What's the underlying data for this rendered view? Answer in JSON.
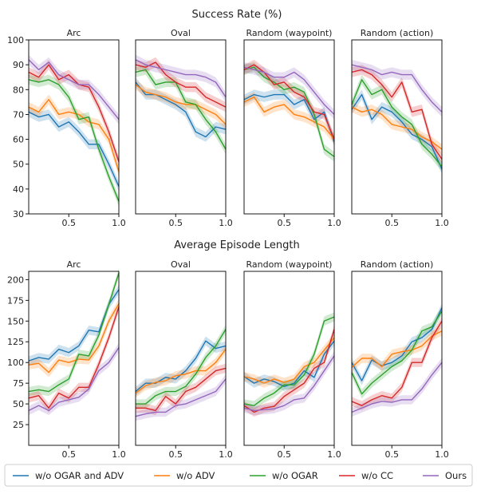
{
  "chart_data": {
    "type": "line",
    "x": [
      0.1,
      0.2,
      0.3,
      0.4,
      0.5,
      0.6,
      0.7,
      0.8,
      0.9,
      1.0
    ],
    "xticks": [
      "0.5",
      "1.0"
    ],
    "xtick_values": [
      0.5,
      1.0
    ],
    "xlim": [
      0.1,
      1.0
    ],
    "series_meta": [
      {
        "name": "w/o OGAR and ADV",
        "color": "#1f77b4"
      },
      {
        "name": "w/o ADV",
        "color": "#ff7f0e"
      },
      {
        "name": "w/o OGAR",
        "color": "#2ca02c"
      },
      {
        "name": "w/o CC",
        "color": "#d62728"
      },
      {
        "name": "Ours",
        "color": "#9467bd"
      }
    ],
    "rows": [
      {
        "title": "Success Rate (%)",
        "ylim": [
          30,
          100
        ],
        "yticks": [
          30,
          40,
          50,
          60,
          70,
          80,
          90,
          100
        ],
        "panels": [
          {
            "title": "Arc",
            "series": [
              {
                "name": "w/o OGAR and ADV",
                "values": [
                  71,
                  69,
                  70,
                  65,
                  67,
                  63,
                  58,
                  58,
                  50,
                  41
                ]
              },
              {
                "name": "w/o ADV",
                "values": [
                  73,
                  71,
                  76,
                  70,
                  71,
                  70,
                  67,
                  66,
                  60,
                  47
                ]
              },
              {
                "name": "w/o OGAR",
                "values": [
                  84,
                  83,
                  84,
                  82,
                  77,
                  68,
                  69,
                  56,
                  45,
                  35
                ]
              },
              {
                "name": "w/o CC",
                "values": [
                  87,
                  85,
                  90,
                  84,
                  86,
                  82,
                  81,
                  73,
                  63,
                  51
                ]
              },
              {
                "name": "Ours",
                "values": [
                  92,
                  88,
                  91,
                  86,
                  84,
                  82,
                  82,
                  78,
                  73,
                  68
                ]
              }
            ]
          },
          {
            "title": "Oval",
            "series": [
              {
                "name": "w/o OGAR and ADV",
                "values": [
                  83,
                  78,
                  78,
                  76,
                  74,
                  71,
                  63,
                  61,
                  65,
                  64
                ]
              },
              {
                "name": "w/o ADV",
                "values": [
                  82,
                  79,
                  78,
                  77,
                  75,
                  74,
                  74,
                  72,
                  70,
                  66
                ]
              },
              {
                "name": "w/o OGAR",
                "values": [
                  87,
                  88,
                  82,
                  83,
                  83,
                  75,
                  74,
                  68,
                  63,
                  56
                ]
              },
              {
                "name": "w/o CC",
                "values": [
                  90,
                  89,
                  91,
                  86,
                  83,
                  81,
                  81,
                  77,
                  75,
                  73
                ]
              },
              {
                "name": "Ours",
                "values": [
                  92,
                  90,
                  89,
                  88,
                  87,
                  86,
                  86,
                  85,
                  83,
                  77
                ]
              }
            ]
          },
          {
            "title": "Random (waypoint)",
            "series": [
              {
                "name": "w/o OGAR and ADV",
                "values": [
                  76,
                  78,
                  77,
                  78,
                  78,
                  74,
                  76,
                  68,
                  71,
                  59
                ]
              },
              {
                "name": "w/o ADV",
                "values": [
                  75,
                  77,
                  71,
                  73,
                  74,
                  70,
                  69,
                  67,
                  65,
                  60
                ]
              },
              {
                "name": "w/o OGAR",
                "values": [
                  88,
                  89,
                  85,
                  83,
                  80,
                  81,
                  79,
                  70,
                  56,
                  53
                ]
              },
              {
                "name": "w/o CC",
                "values": [
                  88,
                  90,
                  87,
                  82,
                  83,
                  79,
                  77,
                  71,
                  70,
                  60
                ]
              },
              {
                "name": "Ours",
                "values": [
                  89,
                  88,
                  87,
                  85,
                  85,
                  87,
                  84,
                  79,
                  74,
                  70
                ]
              }
            ]
          },
          {
            "title": "Random (action)",
            "series": [
              {
                "name": "w/o OGAR and ADV",
                "values": [
                  72,
                  78,
                  68,
                  73,
                  71,
                  67,
                  62,
                  60,
                  57,
                  48
                ]
              },
              {
                "name": "w/o ADV",
                "values": [
                  73,
                  71,
                  72,
                  70,
                  66,
                  65,
                  64,
                  61,
                  59,
                  56
                ]
              },
              {
                "name": "w/o OGAR",
                "values": [
                  74,
                  84,
                  78,
                  80,
                  73,
                  69,
                  66,
                  58,
                  54,
                  49
                ]
              },
              {
                "name": "w/o CC",
                "values": [
                  87,
                  88,
                  86,
                  82,
                  77,
                  83,
                  71,
                  72,
                  58,
                  52
                ]
              },
              {
                "name": "Ours",
                "values": [
                  90,
                  89,
                  88,
                  86,
                  87,
                  86,
                  86,
                  80,
                  75,
                  71
                ]
              }
            ]
          }
        ]
      },
      {
        "title": "Average Episode Length",
        "ylim": [
          0,
          210
        ],
        "yticks": [
          25,
          50,
          75,
          100,
          125,
          150,
          175,
          200
        ],
        "panels": [
          {
            "title": "Arc",
            "series": [
              {
                "name": "w/o OGAR and ADV",
                "values": [
                  102,
                  106,
                  104,
                  116,
                  112,
                  120,
                  139,
                  137,
                  170,
                  188
                ]
              },
              {
                "name": "w/o ADV",
                "values": [
                  97,
                  99,
                  88,
                  103,
                  100,
                  104,
                  103,
                  120,
                  150,
                  171
                ]
              },
              {
                "name": "w/o OGAR",
                "values": [
                  65,
                  67,
                  65,
                  73,
                  80,
                  110,
                  108,
                  133,
                  170,
                  208
                ]
              },
              {
                "name": "w/o CC",
                "values": [
                  57,
                  60,
                  45,
                  63,
                  57,
                  70,
                  70,
                  98,
                  130,
                  167
                ]
              },
              {
                "name": "Ours",
                "values": [
                  42,
                  48,
                  42,
                  52,
                  55,
                  58,
                  68,
                  90,
                  100,
                  118
                ]
              }
            ]
          },
          {
            "title": "Oval",
            "series": [
              {
                "name": "w/o OGAR and ADV",
                "values": [
                  65,
                  75,
                  75,
                  82,
                  80,
                  90,
                  105,
                  126,
                  117,
                  120
                ]
              },
              {
                "name": "w/o ADV",
                "values": [
                  63,
                  72,
                  76,
                  78,
                  84,
                  86,
                  90,
                  90,
                  100,
                  116
                ]
              },
              {
                "name": "w/o OGAR",
                "values": [
                  50,
                  50,
                  60,
                  65,
                  65,
                  71,
                  86,
                  106,
                  120,
                  140
                ]
              },
              {
                "name": "w/o CC",
                "values": [
                  45,
                  45,
                  42,
                  59,
                  50,
                  65,
                  70,
                  80,
                  90,
                  93
                ]
              },
              {
                "name": "Ours",
                "values": [
                  35,
                  38,
                  40,
                  40,
                  48,
                  50,
                  55,
                  60,
                  65,
                  80
                ]
              }
            ]
          },
          {
            "title": "Random (waypoint)",
            "series": [
              {
                "name": "w/o OGAR and ADV",
                "values": [
                  83,
                  75,
                  80,
                  77,
                  71,
                  75,
                  90,
                  82,
                  110,
                  126
                ]
              },
              {
                "name": "w/o ADV",
                "values": [
                  83,
                  80,
                  75,
                  80,
                  76,
                  80,
                  95,
                  100,
                  115,
                  130
                ]
              },
              {
                "name": "w/o OGAR",
                "values": [
                  50,
                  48,
                  57,
                  63,
                  73,
                  73,
                  85,
                  110,
                  150,
                  155
                ]
              },
              {
                "name": "w/o CC",
                "values": [
                  48,
                  40,
                  45,
                  47,
                  59,
                  67,
                  75,
                  93,
                  100,
                  140
                ]
              },
              {
                "name": "Ours",
                "values": [
                  45,
                  42,
                  43,
                  44,
                  48,
                  55,
                  57,
                  72,
                  90,
                  108
                ]
              }
            ]
          },
          {
            "title": "Random (action)",
            "series": [
              {
                "name": "w/o OGAR and ADV",
                "values": [
                  100,
                  78,
                  103,
                  96,
                  100,
                  108,
                  125,
                  130,
                  140,
                  166
                ]
              },
              {
                "name": "w/o ADV",
                "values": [
                  94,
                  105,
                  105,
                  95,
                  110,
                  113,
                  115,
                  120,
                  132,
                  138
                ]
              },
              {
                "name": "w/o OGAR",
                "values": [
                  88,
                  62,
                  75,
                  85,
                  95,
                  102,
                  115,
                  138,
                  143,
                  162
                ]
              },
              {
                "name": "w/o CC",
                "values": [
                  53,
                  48,
                  55,
                  60,
                  57,
                  70,
                  100,
                  100,
                  130,
                  150
                ]
              },
              {
                "name": "Ours",
                "values": [
                  40,
                  45,
                  50,
                  53,
                  52,
                  55,
                  55,
                  68,
                  85,
                  100
                ]
              }
            ]
          }
        ]
      }
    ],
    "legend": [
      "w/o OGAR and ADV",
      "w/o ADV",
      "w/o OGAR",
      "w/o CC",
      "Ours"
    ],
    "legend_position": "bottom"
  }
}
